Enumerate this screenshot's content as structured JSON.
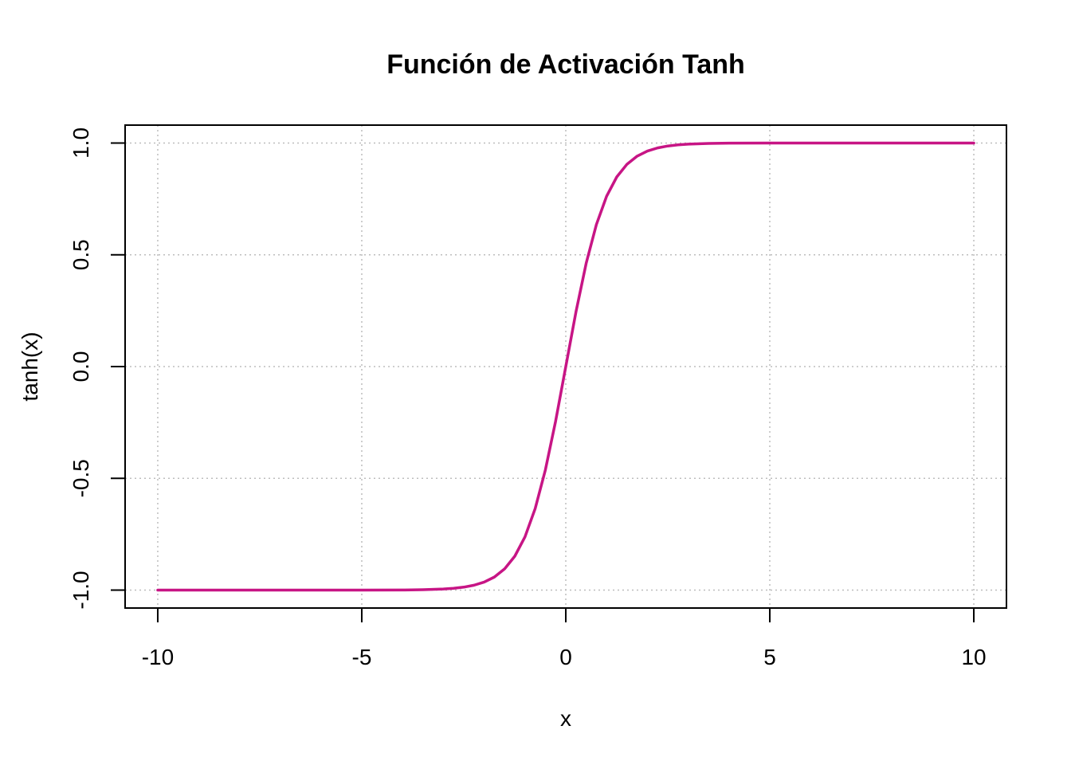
{
  "chart_data": {
    "type": "line",
    "title": "Función de Activación Tanh",
    "xlabel": "x",
    "ylabel": "tanh(x)",
    "xlim": [
      -10.8,
      10.8
    ],
    "ylim": [
      -1.08,
      1.08
    ],
    "x_ticks": [
      -10,
      -5,
      0,
      5,
      10
    ],
    "x_tick_labels": [
      "-10",
      "-5",
      "0",
      "5",
      "10"
    ],
    "y_ticks": [
      -1.0,
      -0.5,
      0.0,
      0.5,
      1.0
    ],
    "y_tick_labels": [
      "-1.0",
      "-0.5",
      "0.0",
      "0.5",
      "1.0"
    ],
    "grid": true,
    "grid_style": "dotted",
    "series": [
      {
        "color": "#C71585",
        "x": [
          -10,
          -9,
          -8,
          -7,
          -6,
          -5,
          -4,
          -3.5,
          -3,
          -2.75,
          -2.5,
          -2.25,
          -2,
          -1.75,
          -1.5,
          -1.25,
          -1,
          -0.75,
          -0.5,
          -0.25,
          0,
          0.25,
          0.5,
          0.75,
          1,
          1.25,
          1.5,
          1.75,
          2,
          2.25,
          2.5,
          2.75,
          3,
          3.5,
          4,
          5,
          6,
          7,
          8,
          9,
          10
        ],
        "y": [
          -1.0,
          -1.0,
          -1.0,
          -1.0,
          -1.0,
          -0.9999,
          -0.9993,
          -0.9982,
          -0.9951,
          -0.9918,
          -0.9866,
          -0.978,
          -0.964,
          -0.9414,
          -0.9051,
          -0.8483,
          -0.7616,
          -0.6351,
          -0.4621,
          -0.2449,
          0.0,
          0.2449,
          0.4621,
          0.6351,
          0.7616,
          0.8483,
          0.9051,
          0.9414,
          0.964,
          0.978,
          0.9866,
          0.9918,
          0.9951,
          0.9982,
          0.9993,
          0.9999,
          1.0,
          1.0,
          1.0,
          1.0,
          1.0
        ]
      }
    ]
  }
}
